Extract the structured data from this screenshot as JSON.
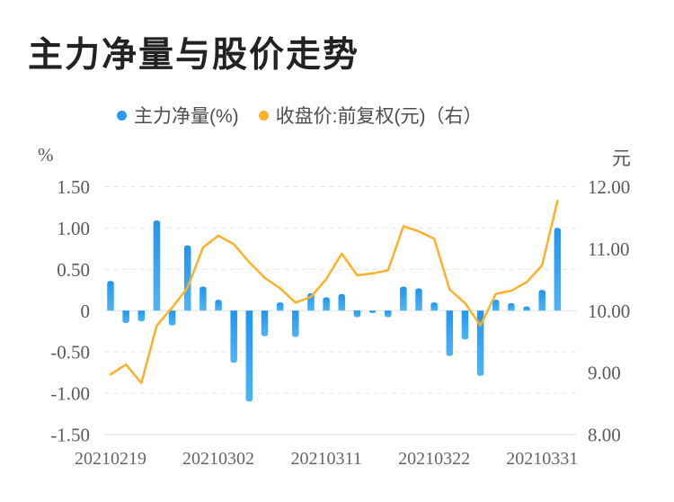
{
  "header": {
    "title": "主力净量与股价走势"
  },
  "legend": {
    "items": [
      {
        "label": "主力净量(%)",
        "color": "#2b9af1"
      },
      {
        "label": "收盘价:前复权(元)（右）",
        "color": "#ffb029"
      }
    ]
  },
  "chart_data": {
    "type": "bar",
    "title": "主力净量与股价走势",
    "legend_position": "top",
    "grid": true,
    "categories": [
      "20210219",
      "20210222",
      "20210223",
      "20210224",
      "20210225",
      "20210226",
      "20210301",
      "20210302",
      "20210303",
      "20210304",
      "20210305",
      "20210308",
      "20210309",
      "20210310",
      "20210311",
      "20210312",
      "20210315",
      "20210316",
      "20210317",
      "20210318",
      "20210319",
      "20210322",
      "20210323",
      "20210324",
      "20210325",
      "20210326",
      "20210329",
      "20210330",
      "20210331",
      "20210401"
    ],
    "series": [
      {
        "name": "主力净量(%)",
        "type": "bar",
        "y_axis": "left",
        "color": "#2b9af1",
        "values": [
          0.36,
          -0.15,
          -0.13,
          1.09,
          -0.18,
          0.79,
          0.29,
          0.13,
          -0.63,
          -1.1,
          -0.31,
          0.1,
          -0.32,
          0.21,
          0.16,
          0.2,
          -0.08,
          -0.03,
          -0.08,
          0.29,
          0.27,
          0.1,
          -0.55,
          -0.35,
          -0.79,
          0.13,
          0.09,
          0.05,
          0.25,
          1.0
        ]
      },
      {
        "name": "收盘价:前复权(元)（右）",
        "type": "line",
        "y_axis": "right",
        "color": "#ffb029",
        "values": [
          8.97,
          9.13,
          8.83,
          9.76,
          10.05,
          10.37,
          11.02,
          11.21,
          11.07,
          10.78,
          10.53,
          10.36,
          10.13,
          10.22,
          10.51,
          10.92,
          10.57,
          10.6,
          10.65,
          11.36,
          11.28,
          11.16,
          10.34,
          10.12,
          9.76,
          10.27,
          10.32,
          10.46,
          10.73,
          11.77
        ]
      }
    ],
    "left_axis": {
      "unit": "%",
      "range": [
        -1.5,
        1.5
      ],
      "ticks": [
        "1.50",
        "1.00",
        "0.50",
        "0",
        "-0.50",
        "-1.00",
        "-1.50"
      ]
    },
    "right_axis": {
      "unit": "元",
      "range": [
        8,
        12
      ],
      "ticks": [
        "12.00",
        "11.00",
        "10.00",
        "9.00",
        "8.00"
      ]
    },
    "x_axis": {
      "tick_labels": [
        "20210219",
        "20210302",
        "20210311",
        "20210322",
        "20210331"
      ],
      "tick_indices": [
        0,
        7,
        14,
        21,
        28
      ]
    }
  },
  "colors": {
    "bar_top": "#1e96f2",
    "bar_bottom": "#4db4f6",
    "line": "#ffb029",
    "grid_dashed": "#e6e6e6",
    "grid_solid": "#e2e2e2",
    "tick_text": "#595959",
    "x_tick_text": "#666666"
  }
}
